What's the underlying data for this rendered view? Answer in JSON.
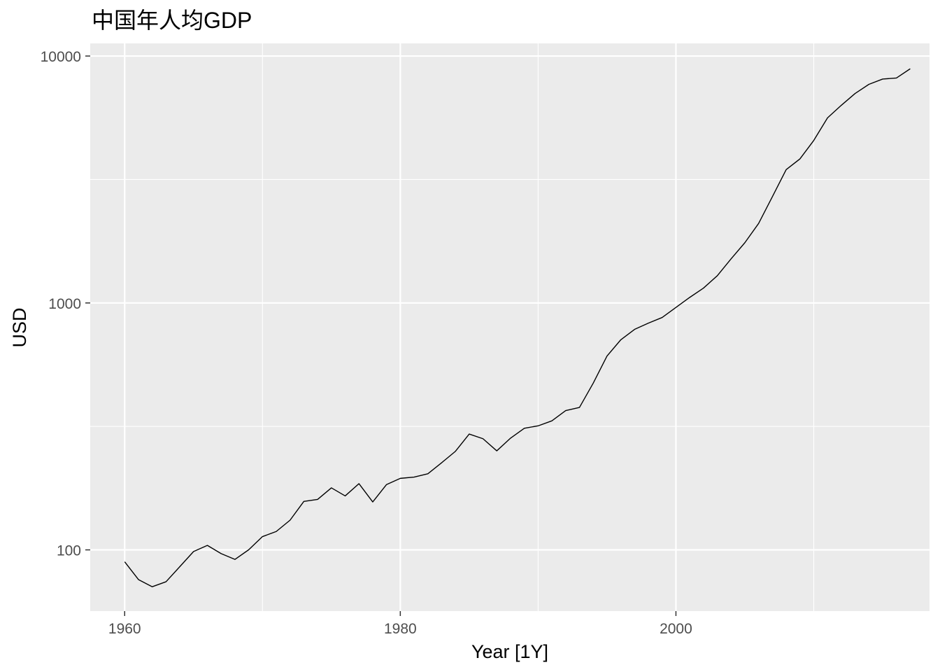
{
  "chart_data": {
    "type": "line",
    "title": "中国年人均GDP",
    "xlabel": "Year [1Y]",
    "ylabel": "USD",
    "y_scale": "log10",
    "xlim": [
      1957.5,
      2018.4
    ],
    "ylim": [
      56.5,
      11250
    ],
    "x_ticks": [
      1960,
      1980,
      2000
    ],
    "x_minor_ticks": [
      1970,
      1990,
      2010
    ],
    "y_ticks": [
      100,
      1000,
      10000
    ],
    "y_tick_labels": [
      "100",
      "1000",
      "10000"
    ],
    "y_minor_ticks": [
      316.23,
      3162.28
    ],
    "grid": true,
    "colors": {
      "panel": "#ebebeb",
      "grid": "#ffffff",
      "line": "#000000"
    },
    "series": [
      {
        "x": [
          1960,
          1961,
          1962,
          1963,
          1964,
          1965,
          1966,
          1967,
          1968,
          1969,
          1970,
          1971,
          1972,
          1973,
          1974,
          1975,
          1976,
          1977,
          1978,
          1979,
          1980,
          1981,
          1982,
          1983,
          1984,
          1985,
          1986,
          1987,
          1988,
          1989,
          1990,
          1991,
          1992,
          1993,
          1994,
          1995,
          1996,
          1997,
          1998,
          1999,
          2000,
          2001,
          2002,
          2003,
          2004,
          2005,
          2006,
          2007,
          2008,
          2009,
          2010,
          2011,
          2012,
          2013,
          2014,
          2015,
          2016,
          2017
        ],
        "values": [
          89.5,
          75.8,
          70.9,
          74.3,
          85.5,
          98.5,
          104.3,
          96.6,
          91.5,
          100.1,
          113.2,
          118.7,
          131.9,
          157.1,
          160.1,
          178.3,
          165.4,
          185.4,
          156.4,
          183.9,
          194.8,
          197.1,
          203.3,
          225.4,
          250.7,
          294.5,
          281.9,
          251.8,
          283.5,
          310.9,
          317.9,
          333.1,
          366.5,
          377.4,
          473.5,
          609.7,
          709.4,
          781.7,
          828.6,
          873.3,
          959.4,
          1053.1,
          1148.5,
          1288.6,
          1508.7,
          1753.4,
          2099.2,
          2693.9,
          3468.3,
          3832.2,
          4550.5,
          5618.1,
          6316.9,
          7050.6,
          7678.6,
          8066.9,
          8147.9,
          8879.4
        ]
      }
    ]
  }
}
